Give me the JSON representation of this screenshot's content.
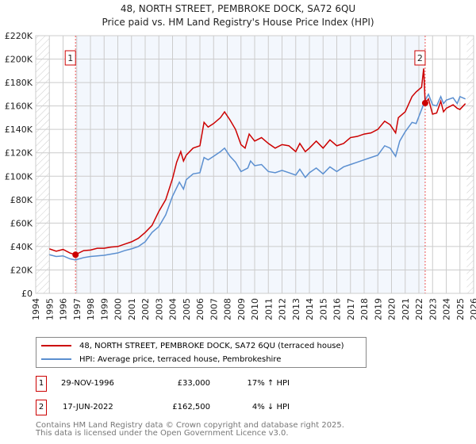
{
  "chart_data": {
    "type": "line",
    "title": "48, NORTH STREET, PEMBROKE DOCK, SA72 6QU",
    "subtitle": "Price paid vs. HM Land Registry's House Price Index (HPI)",
    "xlim": [
      1994,
      2026
    ],
    "ylim": [
      0,
      220000
    ],
    "x_ticks": [
      "1994",
      "1995",
      "1996",
      "1997",
      "1998",
      "1999",
      "2000",
      "2001",
      "2002",
      "2003",
      "2004",
      "2005",
      "2006",
      "2007",
      "2008",
      "2009",
      "2010",
      "2011",
      "2012",
      "2013",
      "2014",
      "2015",
      "2016",
      "2017",
      "2018",
      "2019",
      "2020",
      "2021",
      "2022",
      "2023",
      "2024",
      "2025",
      "2026"
    ],
    "y_ticks": [
      "£0",
      "£20K",
      "£40K",
      "£60K",
      "£80K",
      "£100K",
      "£120K",
      "£140K",
      "£160K",
      "£180K",
      "£200K",
      "£220K"
    ],
    "grid": true,
    "series": [
      {
        "name": "48, NORTH STREET, PEMBROKE DOCK, SA72 6QU (terraced house)",
        "color": "#cc0000",
        "points": [
          [
            1995,
            38000
          ],
          [
            1995.5,
            36000
          ],
          [
            1996,
            37500
          ],
          [
            1996.5,
            34500
          ],
          [
            1996.9,
            33000
          ],
          [
            1997.5,
            36500
          ],
          [
            1998,
            37000
          ],
          [
            1998.5,
            38500
          ],
          [
            1999,
            38500
          ],
          [
            1999.5,
            39500
          ],
          [
            2000,
            40000
          ],
          [
            2000.5,
            42000
          ],
          [
            2001,
            44000
          ],
          [
            2001.5,
            47000
          ],
          [
            2002,
            52000
          ],
          [
            2002.5,
            58000
          ],
          [
            2003,
            70000
          ],
          [
            2003.5,
            80000
          ],
          [
            2004,
            98000
          ],
          [
            2004.3,
            112000
          ],
          [
            2004.6,
            121000
          ],
          [
            2004.8,
            113000
          ],
          [
            2005,
            118000
          ],
          [
            2005.5,
            124000
          ],
          [
            2006,
            126000
          ],
          [
            2006.3,
            146000
          ],
          [
            2006.6,
            142000
          ],
          [
            2007,
            145000
          ],
          [
            2007.5,
            150000
          ],
          [
            2007.8,
            155000
          ],
          [
            2008.2,
            148000
          ],
          [
            2008.6,
            140000
          ],
          [
            2009,
            127000
          ],
          [
            2009.3,
            124000
          ],
          [
            2009.6,
            136000
          ],
          [
            2010,
            130000
          ],
          [
            2010.5,
            133000
          ],
          [
            2011,
            128000
          ],
          [
            2011.5,
            124000
          ],
          [
            2012,
            127000
          ],
          [
            2012.5,
            126000
          ],
          [
            2013,
            121000
          ],
          [
            2013.3,
            128000
          ],
          [
            2013.7,
            121000
          ],
          [
            2014,
            124000
          ],
          [
            2014.5,
            130000
          ],
          [
            2015,
            124000
          ],
          [
            2015.5,
            131000
          ],
          [
            2016,
            126000
          ],
          [
            2016.5,
            128000
          ],
          [
            2017,
            133000
          ],
          [
            2017.5,
            134000
          ],
          [
            2018,
            136000
          ],
          [
            2018.5,
            137000
          ],
          [
            2019,
            140000
          ],
          [
            2019.5,
            147000
          ],
          [
            2019.9,
            144000
          ],
          [
            2020.3,
            137000
          ],
          [
            2020.5,
            150000
          ],
          [
            2021,
            155000
          ],
          [
            2021.5,
            168000
          ],
          [
            2021.8,
            172000
          ],
          [
            2022.2,
            176000
          ],
          [
            2022.35,
            192000
          ],
          [
            2022.46,
            162500
          ],
          [
            2022.7,
            166000
          ],
          [
            2023,
            153000
          ],
          [
            2023.3,
            154000
          ],
          [
            2023.6,
            164000
          ],
          [
            2023.8,
            155000
          ],
          [
            2024,
            158000
          ],
          [
            2024.5,
            161000
          ],
          [
            2024.8,
            158000
          ],
          [
            2025,
            157000
          ],
          [
            2025.4,
            162000
          ]
        ]
      },
      {
        "name": "HPI: Average price, terraced house, Pembrokeshire",
        "color": "#5b8fd0",
        "points": [
          [
            1995,
            33000
          ],
          [
            1995.5,
            31500
          ],
          [
            1996,
            32000
          ],
          [
            1996.5,
            29500
          ],
          [
            1996.9,
            28500
          ],
          [
            1997.5,
            30500
          ],
          [
            1998,
            31500
          ],
          [
            1998.5,
            32000
          ],
          [
            1999,
            32500
          ],
          [
            1999.5,
            33500
          ],
          [
            2000,
            34500
          ],
          [
            2000.5,
            36500
          ],
          [
            2001,
            38000
          ],
          [
            2001.5,
            40000
          ],
          [
            2002,
            44000
          ],
          [
            2002.5,
            52000
          ],
          [
            2003,
            57000
          ],
          [
            2003.5,
            67000
          ],
          [
            2004,
            83000
          ],
          [
            2004.5,
            95000
          ],
          [
            2004.8,
            89000
          ],
          [
            2005,
            97000
          ],
          [
            2005.5,
            102000
          ],
          [
            2006,
            103000
          ],
          [
            2006.3,
            116000
          ],
          [
            2006.6,
            114000
          ],
          [
            2007,
            117000
          ],
          [
            2007.5,
            121000
          ],
          [
            2007.8,
            124000
          ],
          [
            2008.2,
            117000
          ],
          [
            2008.6,
            112000
          ],
          [
            2009,
            104000
          ],
          [
            2009.5,
            107000
          ],
          [
            2009.7,
            113000
          ],
          [
            2010,
            109000
          ],
          [
            2010.5,
            110000
          ],
          [
            2011,
            104000
          ],
          [
            2011.5,
            103000
          ],
          [
            2012,
            105000
          ],
          [
            2012.5,
            103000
          ],
          [
            2013,
            101000
          ],
          [
            2013.3,
            106000
          ],
          [
            2013.7,
            99000
          ],
          [
            2014,
            103000
          ],
          [
            2014.5,
            107000
          ],
          [
            2015,
            102000
          ],
          [
            2015.5,
            108000
          ],
          [
            2016,
            104000
          ],
          [
            2016.5,
            108000
          ],
          [
            2017,
            110000
          ],
          [
            2017.5,
            112000
          ],
          [
            2018,
            114000
          ],
          [
            2018.5,
            116000
          ],
          [
            2019,
            118000
          ],
          [
            2019.5,
            126000
          ],
          [
            2019.9,
            124000
          ],
          [
            2020.3,
            117000
          ],
          [
            2020.6,
            130000
          ],
          [
            2021,
            138000
          ],
          [
            2021.5,
            146000
          ],
          [
            2021.8,
            145000
          ],
          [
            2022.2,
            157000
          ],
          [
            2022.46,
            165000
          ],
          [
            2022.7,
            170000
          ],
          [
            2023,
            161000
          ],
          [
            2023.3,
            160000
          ],
          [
            2023.6,
            168000
          ],
          [
            2023.8,
            162000
          ],
          [
            2024,
            165000
          ],
          [
            2024.5,
            167000
          ],
          [
            2024.8,
            162000
          ],
          [
            2025,
            168000
          ],
          [
            2025.4,
            166000
          ]
        ]
      }
    ],
    "sales": [
      {
        "label": "1",
        "x": 1996.91,
        "y": 33000
      },
      {
        "label": "2",
        "x": 2022.46,
        "y": 162500
      }
    ],
    "legend_position": "below"
  },
  "legend": {
    "items": [
      "48, NORTH STREET, PEMBROKE DOCK, SA72 6QU (terraced house)",
      "HPI: Average price, terraced house, Pembrokeshire"
    ]
  },
  "transactions": [
    {
      "num": "1",
      "date": "29-NOV-1996",
      "price": "£33,000",
      "hpi": "17% ↑ HPI"
    },
    {
      "num": "2",
      "date": "17-JUN-2022",
      "price": "£162,500",
      "hpi": "4% ↓ HPI"
    }
  ],
  "footer": [
    "Contains HM Land Registry data © Crown copyright and database right 2025.",
    "This data is licensed under the Open Government Licence v3.0."
  ]
}
